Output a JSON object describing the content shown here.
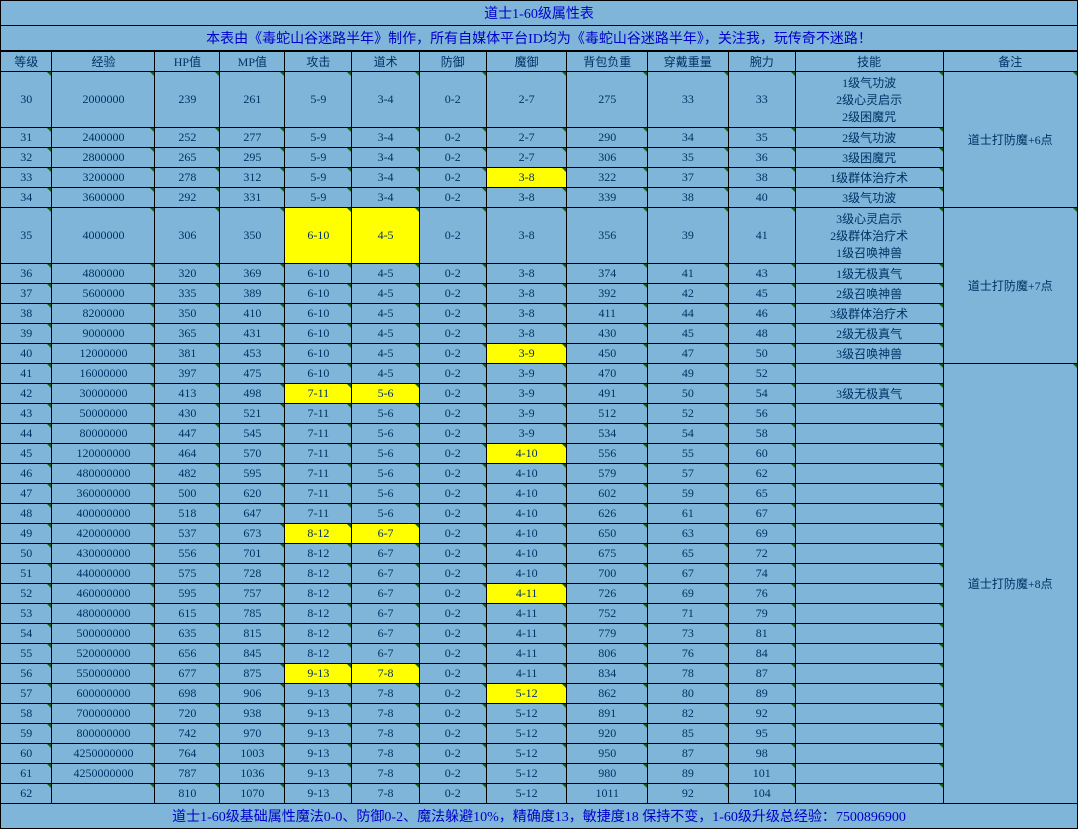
{
  "title": "道士1-60级属性表",
  "subtitle": "本表由《毒蛇山谷迷路半年》制作，所有自媒体平台ID均为《毒蛇山谷迷路半年》，关注我，玩传奇不迷路！",
  "footer": "道士1-60级基础属性魔法0-0、防御0-2、魔法躲避10%，精确度13，敏捷度18 保持不变，1-60级升级总经验：7500896900",
  "columns": [
    "等级",
    "经验",
    "HP值",
    "MP值",
    "攻击",
    "道术",
    "防御",
    "魔御",
    "背包负重",
    "穿戴重量",
    "腕力",
    "技能",
    "备注"
  ],
  "colors": {
    "bg": "#7fb5d8",
    "border": "#000000",
    "text": "#003366",
    "link": "#0000cc",
    "highlight": "#ffff00",
    "corner": "#1a5c1a"
  },
  "rows": [
    {
      "lv": "30",
      "exp": "2000000",
      "hp": "239",
      "mp": "261",
      "atk": "5-9",
      "dao": "3-4",
      "def": "0-2",
      "mdef": "2-7",
      "bag": "275",
      "wear": "33",
      "arm": "33",
      "skill": "1级气功波\n2级心灵启示\n2级困魔咒",
      "note": "道士打防魔+6点",
      "noteSpan": 5,
      "tall": true
    },
    {
      "lv": "31",
      "exp": "2400000",
      "hp": "252",
      "mp": "277",
      "atk": "5-9",
      "dao": "3-4",
      "def": "0-2",
      "mdef": "2-7",
      "bag": "290",
      "wear": "34",
      "arm": "35",
      "skill": "2级气功波"
    },
    {
      "lv": "32",
      "exp": "2800000",
      "hp": "265",
      "mp": "295",
      "atk": "5-9",
      "dao": "3-4",
      "def": "0-2",
      "mdef": "2-7",
      "bag": "306",
      "wear": "35",
      "arm": "36",
      "skill": "3级困魔咒"
    },
    {
      "lv": "33",
      "exp": "3200000",
      "hp": "278",
      "mp": "312",
      "atk": "5-9",
      "dao": "3-4",
      "def": "0-2",
      "mdef": "3-8",
      "bag": "322",
      "wear": "37",
      "arm": "38",
      "skill": "1级群体治疗术",
      "hl": [
        "mdef"
      ]
    },
    {
      "lv": "34",
      "exp": "3600000",
      "hp": "292",
      "mp": "331",
      "atk": "5-9",
      "dao": "3-4",
      "def": "0-2",
      "mdef": "3-8",
      "bag": "339",
      "wear": "38",
      "arm": "40",
      "skill": "3级气功波"
    },
    {
      "lv": "35",
      "exp": "4000000",
      "hp": "306",
      "mp": "350",
      "atk": "6-10",
      "dao": "4-5",
      "def": "0-2",
      "mdef": "3-8",
      "bag": "356",
      "wear": "39",
      "arm": "41",
      "skill": "3级心灵启示\n2级群体治疗术\n1级召唤神兽",
      "note": "道士打防魔+7点",
      "noteSpan": 6,
      "tall": true,
      "hl": [
        "atk",
        "dao"
      ]
    },
    {
      "lv": "36",
      "exp": "4800000",
      "hp": "320",
      "mp": "369",
      "atk": "6-10",
      "dao": "4-5",
      "def": "0-2",
      "mdef": "3-8",
      "bag": "374",
      "wear": "41",
      "arm": "43",
      "skill": "1级无极真气"
    },
    {
      "lv": "37",
      "exp": "5600000",
      "hp": "335",
      "mp": "389",
      "atk": "6-10",
      "dao": "4-5",
      "def": "0-2",
      "mdef": "3-8",
      "bag": "392",
      "wear": "42",
      "arm": "45",
      "skill": "2级召唤神兽"
    },
    {
      "lv": "38",
      "exp": "8200000",
      "hp": "350",
      "mp": "410",
      "atk": "6-10",
      "dao": "4-5",
      "def": "0-2",
      "mdef": "3-8",
      "bag": "411",
      "wear": "44",
      "arm": "46",
      "skill": "3级群体治疗术"
    },
    {
      "lv": "39",
      "exp": "9000000",
      "hp": "365",
      "mp": "431",
      "atk": "6-10",
      "dao": "4-5",
      "def": "0-2",
      "mdef": "3-8",
      "bag": "430",
      "wear": "45",
      "arm": "48",
      "skill": "2级无极真气"
    },
    {
      "lv": "40",
      "exp": "12000000",
      "hp": "381",
      "mp": "453",
      "atk": "6-10",
      "dao": "4-5",
      "def": "0-2",
      "mdef": "3-9",
      "bag": "450",
      "wear": "47",
      "arm": "50",
      "skill": "3级召唤神兽",
      "hl": [
        "mdef"
      ]
    },
    {
      "lv": "41",
      "exp": "16000000",
      "hp": "397",
      "mp": "475",
      "atk": "6-10",
      "dao": "4-5",
      "def": "0-2",
      "mdef": "3-9",
      "bag": "470",
      "wear": "49",
      "arm": "52",
      "skill": "",
      "note": "道士打防魔+8点",
      "noteSpan": 22
    },
    {
      "lv": "42",
      "exp": "30000000",
      "hp": "413",
      "mp": "498",
      "atk": "7-11",
      "dao": "5-6",
      "def": "0-2",
      "mdef": "3-9",
      "bag": "491",
      "wear": "50",
      "arm": "54",
      "skill": "3级无极真气",
      "hl": [
        "atk",
        "dao"
      ]
    },
    {
      "lv": "43",
      "exp": "50000000",
      "hp": "430",
      "mp": "521",
      "atk": "7-11",
      "dao": "5-6",
      "def": "0-2",
      "mdef": "3-9",
      "bag": "512",
      "wear": "52",
      "arm": "56",
      "skill": ""
    },
    {
      "lv": "44",
      "exp": "80000000",
      "hp": "447",
      "mp": "545",
      "atk": "7-11",
      "dao": "5-6",
      "def": "0-2",
      "mdef": "3-9",
      "bag": "534",
      "wear": "54",
      "arm": "58",
      "skill": ""
    },
    {
      "lv": "45",
      "exp": "120000000",
      "hp": "464",
      "mp": "570",
      "atk": "7-11",
      "dao": "5-6",
      "def": "0-2",
      "mdef": "4-10",
      "bag": "556",
      "wear": "55",
      "arm": "60",
      "skill": "",
      "hl": [
        "mdef"
      ]
    },
    {
      "lv": "46",
      "exp": "480000000",
      "hp": "482",
      "mp": "595",
      "atk": "7-11",
      "dao": "5-6",
      "def": "0-2",
      "mdef": "4-10",
      "bag": "579",
      "wear": "57",
      "arm": "62",
      "skill": ""
    },
    {
      "lv": "47",
      "exp": "360000000",
      "hp": "500",
      "mp": "620",
      "atk": "7-11",
      "dao": "5-6",
      "def": "0-2",
      "mdef": "4-10",
      "bag": "602",
      "wear": "59",
      "arm": "65",
      "skill": ""
    },
    {
      "lv": "48",
      "exp": "400000000",
      "hp": "518",
      "mp": "647",
      "atk": "7-11",
      "dao": "5-6",
      "def": "0-2",
      "mdef": "4-10",
      "bag": "626",
      "wear": "61",
      "arm": "67",
      "skill": ""
    },
    {
      "lv": "49",
      "exp": "420000000",
      "hp": "537",
      "mp": "673",
      "atk": "8-12",
      "dao": "6-7",
      "def": "0-2",
      "mdef": "4-10",
      "bag": "650",
      "wear": "63",
      "arm": "69",
      "skill": "",
      "hl": [
        "atk",
        "dao"
      ]
    },
    {
      "lv": "50",
      "exp": "430000000",
      "hp": "556",
      "mp": "701",
      "atk": "8-12",
      "dao": "6-7",
      "def": "0-2",
      "mdef": "4-10",
      "bag": "675",
      "wear": "65",
      "arm": "72",
      "skill": ""
    },
    {
      "lv": "51",
      "exp": "440000000",
      "hp": "575",
      "mp": "728",
      "atk": "8-12",
      "dao": "6-7",
      "def": "0-2",
      "mdef": "4-10",
      "bag": "700",
      "wear": "67",
      "arm": "74",
      "skill": ""
    },
    {
      "lv": "52",
      "exp": "460000000",
      "hp": "595",
      "mp": "757",
      "atk": "8-12",
      "dao": "6-7",
      "def": "0-2",
      "mdef": "4-11",
      "bag": "726",
      "wear": "69",
      "arm": "76",
      "skill": "",
      "hl": [
        "mdef"
      ]
    },
    {
      "lv": "53",
      "exp": "480000000",
      "hp": "615",
      "mp": "785",
      "atk": "8-12",
      "dao": "6-7",
      "def": "0-2",
      "mdef": "4-11",
      "bag": "752",
      "wear": "71",
      "arm": "79",
      "skill": ""
    },
    {
      "lv": "54",
      "exp": "500000000",
      "hp": "635",
      "mp": "815",
      "atk": "8-12",
      "dao": "6-7",
      "def": "0-2",
      "mdef": "4-11",
      "bag": "779",
      "wear": "73",
      "arm": "81",
      "skill": ""
    },
    {
      "lv": "55",
      "exp": "520000000",
      "hp": "656",
      "mp": "845",
      "atk": "8-12",
      "dao": "6-7",
      "def": "0-2",
      "mdef": "4-11",
      "bag": "806",
      "wear": "76",
      "arm": "84",
      "skill": ""
    },
    {
      "lv": "56",
      "exp": "550000000",
      "hp": "677",
      "mp": "875",
      "atk": "9-13",
      "dao": "7-8",
      "def": "0-2",
      "mdef": "4-11",
      "bag": "834",
      "wear": "78",
      "arm": "87",
      "skill": "",
      "hl": [
        "atk",
        "dao"
      ]
    },
    {
      "lv": "57",
      "exp": "600000000",
      "hp": "698",
      "mp": "906",
      "atk": "9-13",
      "dao": "7-8",
      "def": "0-2",
      "mdef": "5-12",
      "bag": "862",
      "wear": "80",
      "arm": "89",
      "skill": "",
      "hl": [
        "mdef"
      ]
    },
    {
      "lv": "58",
      "exp": "700000000",
      "hp": "720",
      "mp": "938",
      "atk": "9-13",
      "dao": "7-8",
      "def": "0-2",
      "mdef": "5-12",
      "bag": "891",
      "wear": "82",
      "arm": "92",
      "skill": ""
    },
    {
      "lv": "59",
      "exp": "800000000",
      "hp": "742",
      "mp": "970",
      "atk": "9-13",
      "dao": "7-8",
      "def": "0-2",
      "mdef": "5-12",
      "bag": "920",
      "wear": "85",
      "arm": "95",
      "skill": ""
    },
    {
      "lv": "60",
      "exp": "4250000000",
      "hp": "764",
      "mp": "1003",
      "atk": "9-13",
      "dao": "7-8",
      "def": "0-2",
      "mdef": "5-12",
      "bag": "950",
      "wear": "87",
      "arm": "98",
      "skill": ""
    },
    {
      "lv": "61",
      "exp": "4250000000",
      "hp": "787",
      "mp": "1036",
      "atk": "9-13",
      "dao": "7-8",
      "def": "0-2",
      "mdef": "5-12",
      "bag": "980",
      "wear": "89",
      "arm": "101",
      "skill": ""
    },
    {
      "lv": "62",
      "exp": "",
      "hp": "810",
      "mp": "1070",
      "atk": "9-13",
      "dao": "7-8",
      "def": "0-2",
      "mdef": "5-12",
      "bag": "1011",
      "wear": "92",
      "arm": "104",
      "skill": ""
    }
  ]
}
